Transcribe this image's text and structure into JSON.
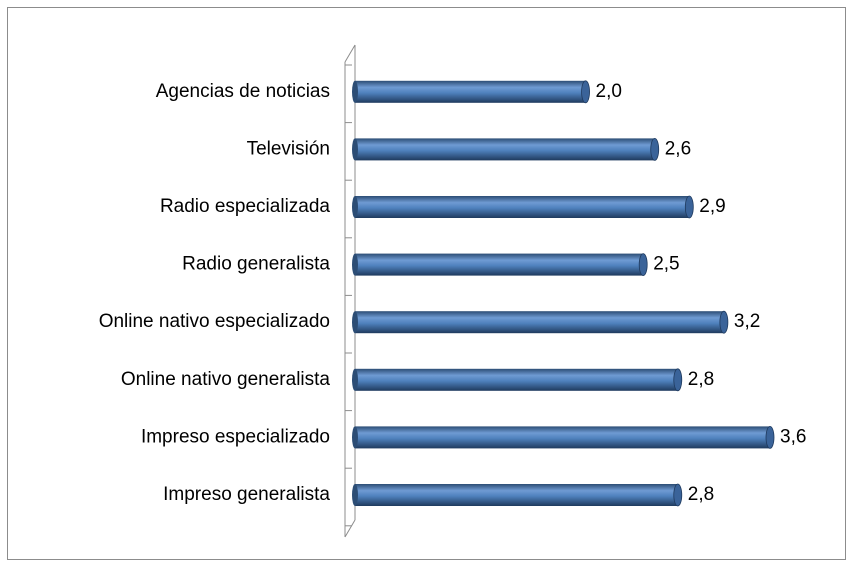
{
  "chart_data": {
    "type": "bar",
    "orientation": "horizontal",
    "categories": [
      "Agencias de noticias",
      "Televisión",
      "Radio especializada",
      "Radio generalista",
      "Online nativo especializado",
      "Online nativo generalista",
      "Impreso especializado",
      "Impreso generalista"
    ],
    "values": [
      2.0,
      2.6,
      2.9,
      2.5,
      3.2,
      2.8,
      3.6,
      2.8
    ],
    "value_labels": [
      "2,0",
      "2,6",
      "2,9",
      "2,5",
      "3,2",
      "2,8",
      "3,6",
      "2,8"
    ],
    "color": "#4f81bd"
  }
}
